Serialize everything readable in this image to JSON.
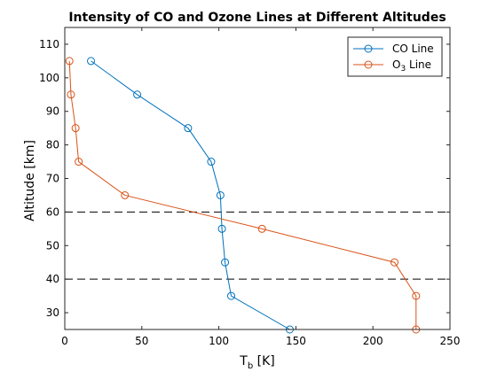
{
  "chart_data": {
    "type": "line",
    "title": "Intensity of CO and Ozone Lines at Different Altitudes",
    "xlabel": "T",
    "xlabel_sub": "b",
    "xlabel_unit": " [K]",
    "ylabel": "Altitude [km]",
    "xlim": [
      0,
      250
    ],
    "ylim": [
      25,
      115
    ],
    "xticks": [
      0,
      50,
      100,
      150,
      200,
      250
    ],
    "yticks": [
      30,
      40,
      50,
      60,
      70,
      80,
      90,
      100,
      110
    ],
    "grid": false,
    "legend_position": "top-right",
    "reference_lines": [
      {
        "orientation": "horizontal",
        "y": 60,
        "style": "dashed",
        "color": "#000000"
      },
      {
        "orientation": "horizontal",
        "y": 40,
        "style": "dashed",
        "color": "#000000"
      }
    ],
    "series": [
      {
        "name": "CO Line",
        "color": "#0072BD",
        "marker": "circle",
        "points": [
          {
            "x": 17,
            "y": 105
          },
          {
            "x": 47,
            "y": 95
          },
          {
            "x": 80,
            "y": 85
          },
          {
            "x": 95,
            "y": 75
          },
          {
            "x": 101,
            "y": 65
          },
          {
            "x": 102,
            "y": 55
          },
          {
            "x": 104,
            "y": 45
          },
          {
            "x": 108,
            "y": 35
          },
          {
            "x": 146,
            "y": 25
          }
        ]
      },
      {
        "name": "O",
        "name_sub": "3",
        "name_suffix": " Line",
        "color": "#D95319",
        "marker": "circle",
        "points": [
          {
            "x": 3,
            "y": 105
          },
          {
            "x": 4,
            "y": 95
          },
          {
            "x": 7,
            "y": 85
          },
          {
            "x": 9,
            "y": 75
          },
          {
            "x": 39,
            "y": 65
          },
          {
            "x": 128,
            "y": 55
          },
          {
            "x": 214,
            "y": 45
          },
          {
            "x": 228,
            "y": 35
          },
          {
            "x": 228,
            "y": 25
          }
        ]
      }
    ]
  }
}
